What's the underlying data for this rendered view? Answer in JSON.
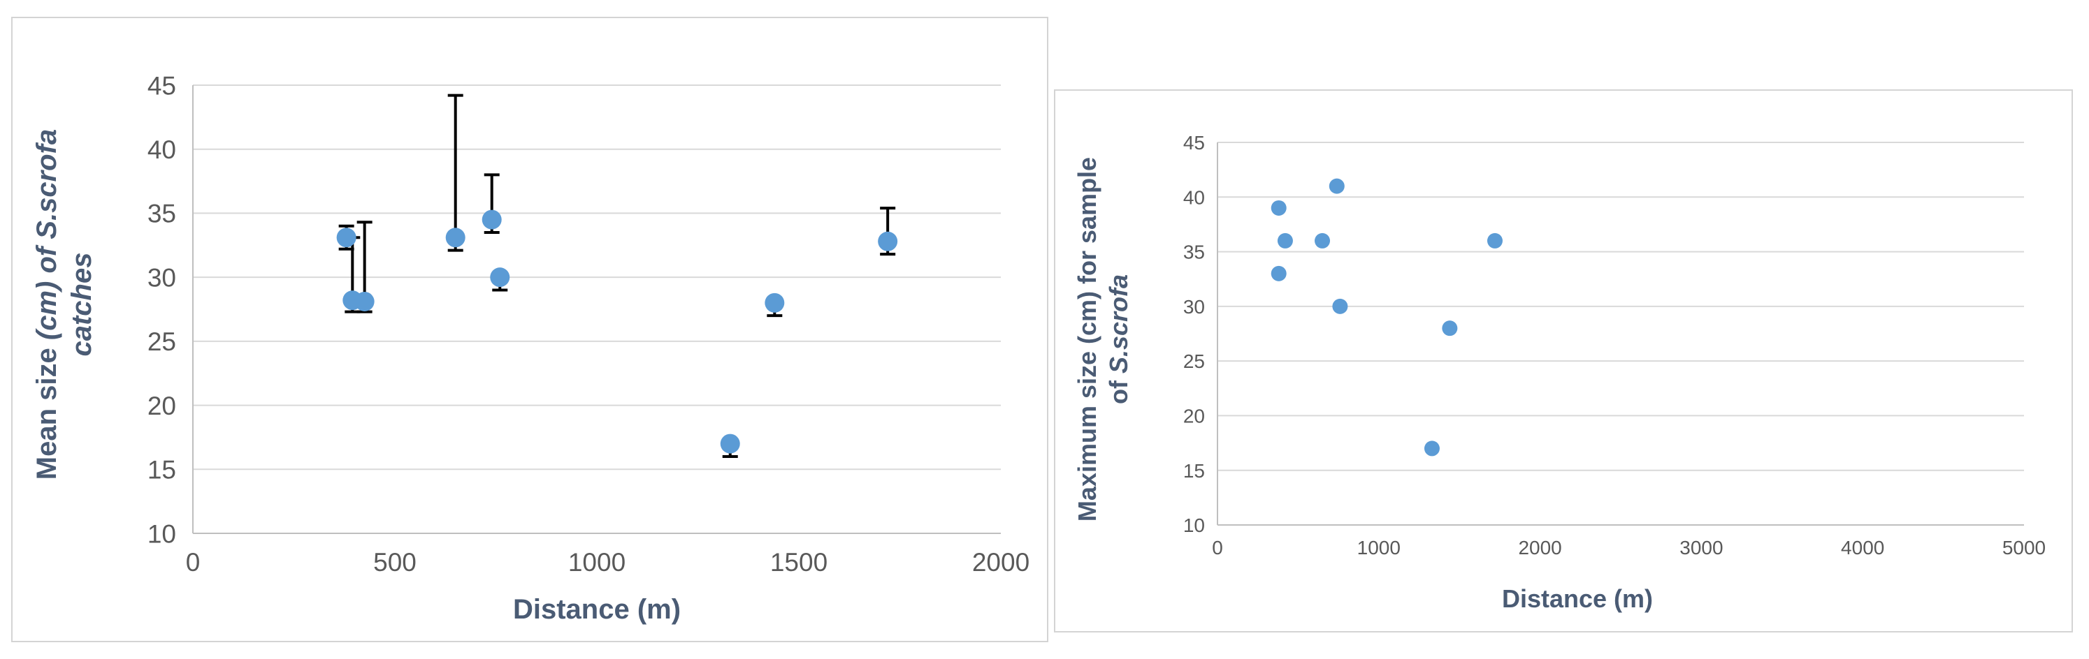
{
  "chart_data": [
    {
      "type": "scatter",
      "title": "",
      "xlabel": "Distance (m)",
      "ylabel_parts": [
        "Mean size ",
        "(cm) of ",
        "S.scrofa",
        "catches"
      ],
      "xlim": [
        0,
        2000
      ],
      "ylim": [
        10,
        45
      ],
      "xticks": [
        "0",
        "500",
        "1000",
        "1500",
        "2000"
      ],
      "yticks": [
        "10",
        "15",
        "20",
        "25",
        "30",
        "35",
        "40",
        "45"
      ],
      "grid": true,
      "legend": "none",
      "marker_color": "#5b9bd5",
      "errorbar_color": "#000000",
      "points": [
        {
          "x": 380,
          "y": 33.1,
          "err_low": 32.2,
          "err_high": 34.0
        },
        {
          "x": 395,
          "y": 28.2,
          "err_low": 27.3,
          "err_high": 33.1
        },
        {
          "x": 425,
          "y": 28.1,
          "err_low": 27.3,
          "err_high": 34.3
        },
        {
          "x": 650,
          "y": 33.1,
          "err_low": 32.1,
          "err_high": 44.2
        },
        {
          "x": 740,
          "y": 34.5,
          "err_low": 33.5,
          "err_high": 38.0
        },
        {
          "x": 760,
          "y": 30.0,
          "err_low": 29.0,
          "err_high": 30.0
        },
        {
          "x": 1330,
          "y": 17.0,
          "err_low": 16.0,
          "err_high": 17.0
        },
        {
          "x": 1440,
          "y": 28.0,
          "err_low": 27.0,
          "err_high": 28.0
        },
        {
          "x": 1720,
          "y": 32.8,
          "err_low": 31.8,
          "err_high": 35.4
        }
      ]
    },
    {
      "type": "scatter",
      "title": "",
      "xlabel": "Distance (m)",
      "ylabel_parts": [
        "Maximum size (cm) for sample",
        "of ",
        "S.scrofa"
      ],
      "xlim": [
        0,
        5000
      ],
      "ylim": [
        10,
        45
      ],
      "xticks": [
        "0",
        "1000",
        "2000",
        "3000",
        "4000",
        "5000"
      ],
      "yticks": [
        "10",
        "15",
        "20",
        "25",
        "30",
        "35",
        "40",
        "45"
      ],
      "grid": true,
      "legend": "none",
      "marker_color": "#5b9bd5",
      "points": [
        {
          "x": 380,
          "y": 39
        },
        {
          "x": 380,
          "y": 33
        },
        {
          "x": 420,
          "y": 36
        },
        {
          "x": 650,
          "y": 36
        },
        {
          "x": 740,
          "y": 41
        },
        {
          "x": 760,
          "y": 30
        },
        {
          "x": 1330,
          "y": 17
        },
        {
          "x": 1440,
          "y": 28
        },
        {
          "x": 1720,
          "y": 36
        }
      ]
    }
  ]
}
